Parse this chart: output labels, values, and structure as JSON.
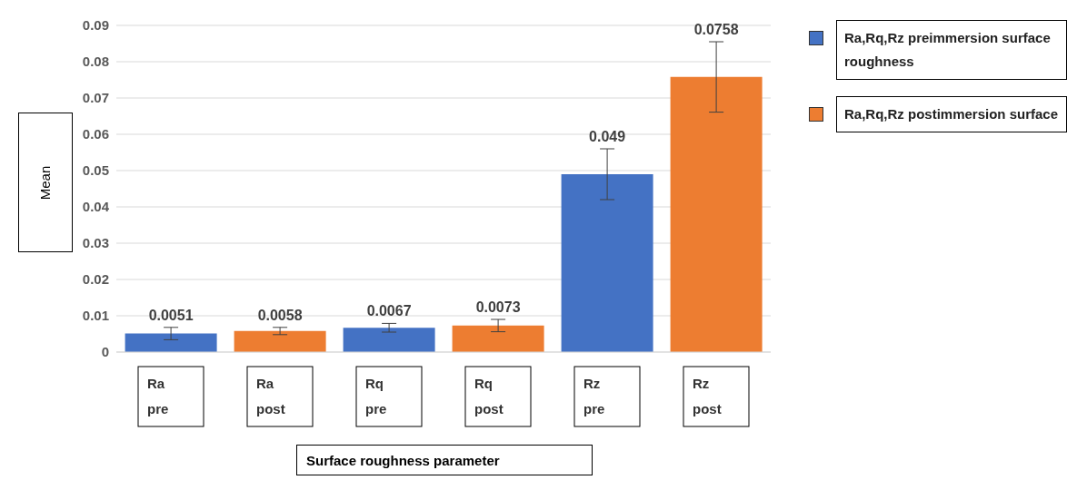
{
  "chart_data": {
    "type": "bar",
    "stacked": true,
    "categories": [
      "Ra pre",
      "Ra post",
      "Rq pre",
      "Rq post",
      "Rz pre",
      "Rz post"
    ],
    "series": [
      {
        "name": "Ra,Rq,Rz preimmersion surface roughness",
        "color": "#4472c4",
        "values": [
          0.0051,
          null,
          0.0067,
          null,
          0.049,
          null
        ],
        "errors": [
          0.0017,
          null,
          0.0012,
          null,
          0.007,
          null
        ]
      },
      {
        "name": "Ra,Rq,Rz postimmersion surface",
        "color": "#ed7d31",
        "values": [
          null,
          0.0058,
          null,
          0.0073,
          null,
          0.0758
        ],
        "errors": [
          null,
          0.001,
          null,
          0.0017,
          null,
          0.0097
        ]
      }
    ],
    "ylim": [
      0,
      0.09
    ],
    "yticks": [
      0,
      0.01,
      0.02,
      0.03,
      0.04,
      0.05,
      0.06,
      0.07,
      0.08,
      0.09
    ],
    "grid": "y",
    "data_labels": true,
    "legend": "top right",
    "xlabel": "Surface roughness parameter",
    "ylabel": "Mean"
  }
}
